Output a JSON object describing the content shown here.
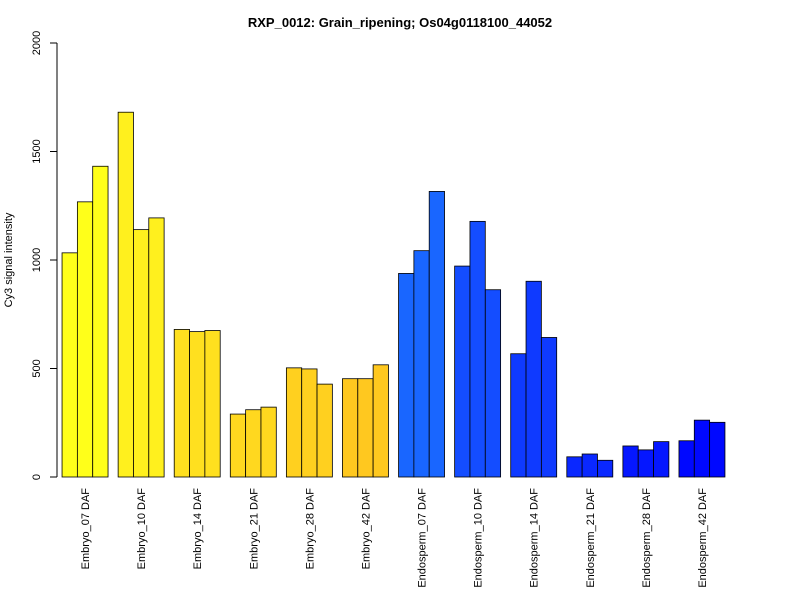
{
  "chart_data": {
    "type": "bar",
    "title": "RXP_0012: Grain_ripening; Os04g0118100_44052",
    "xlabel": "",
    "ylabel": "Cy3 signal intensity",
    "ylim": [
      0,
      2000
    ],
    "yticks": [
      0,
      500,
      1000,
      1500,
      2000
    ],
    "grid": false,
    "categories": [
      "Embryo_07 DAF",
      "Embryo_10 DAF",
      "Embryo_14 DAF",
      "Embryo_21 DAF",
      "Embryo_28 DAF",
      "Embryo_42 DAF",
      "Endosperm_07 DAF",
      "Endosperm_10 DAF",
      "Endosperm_14 DAF",
      "Endosperm_21 DAF",
      "Endosperm_28 DAF",
      "Endosperm_42 DAF"
    ],
    "group_colors": [
      "#FFFF1A",
      "#FFF01E",
      "#FFE01F",
      "#FFD81F",
      "#FFD01F",
      "#FFC81F",
      "#1966FF",
      "#144DFF",
      "#0F3AFF",
      "#0A28FF",
      "#0517FF",
      "#0008FF"
    ],
    "replicates": [
      [
        1033,
        1268,
        1432
      ],
      [
        1681,
        1140,
        1194
      ],
      [
        680,
        670,
        675
      ],
      [
        290,
        310,
        322
      ],
      [
        503,
        498,
        428
      ],
      [
        453,
        453,
        517
      ],
      [
        938,
        1043,
        1316
      ],
      [
        972,
        1178,
        863
      ],
      [
        568,
        902,
        643
      ],
      [
        93,
        106,
        77
      ],
      [
        143,
        125,
        163
      ],
      [
        167,
        262,
        252
      ]
    ]
  }
}
